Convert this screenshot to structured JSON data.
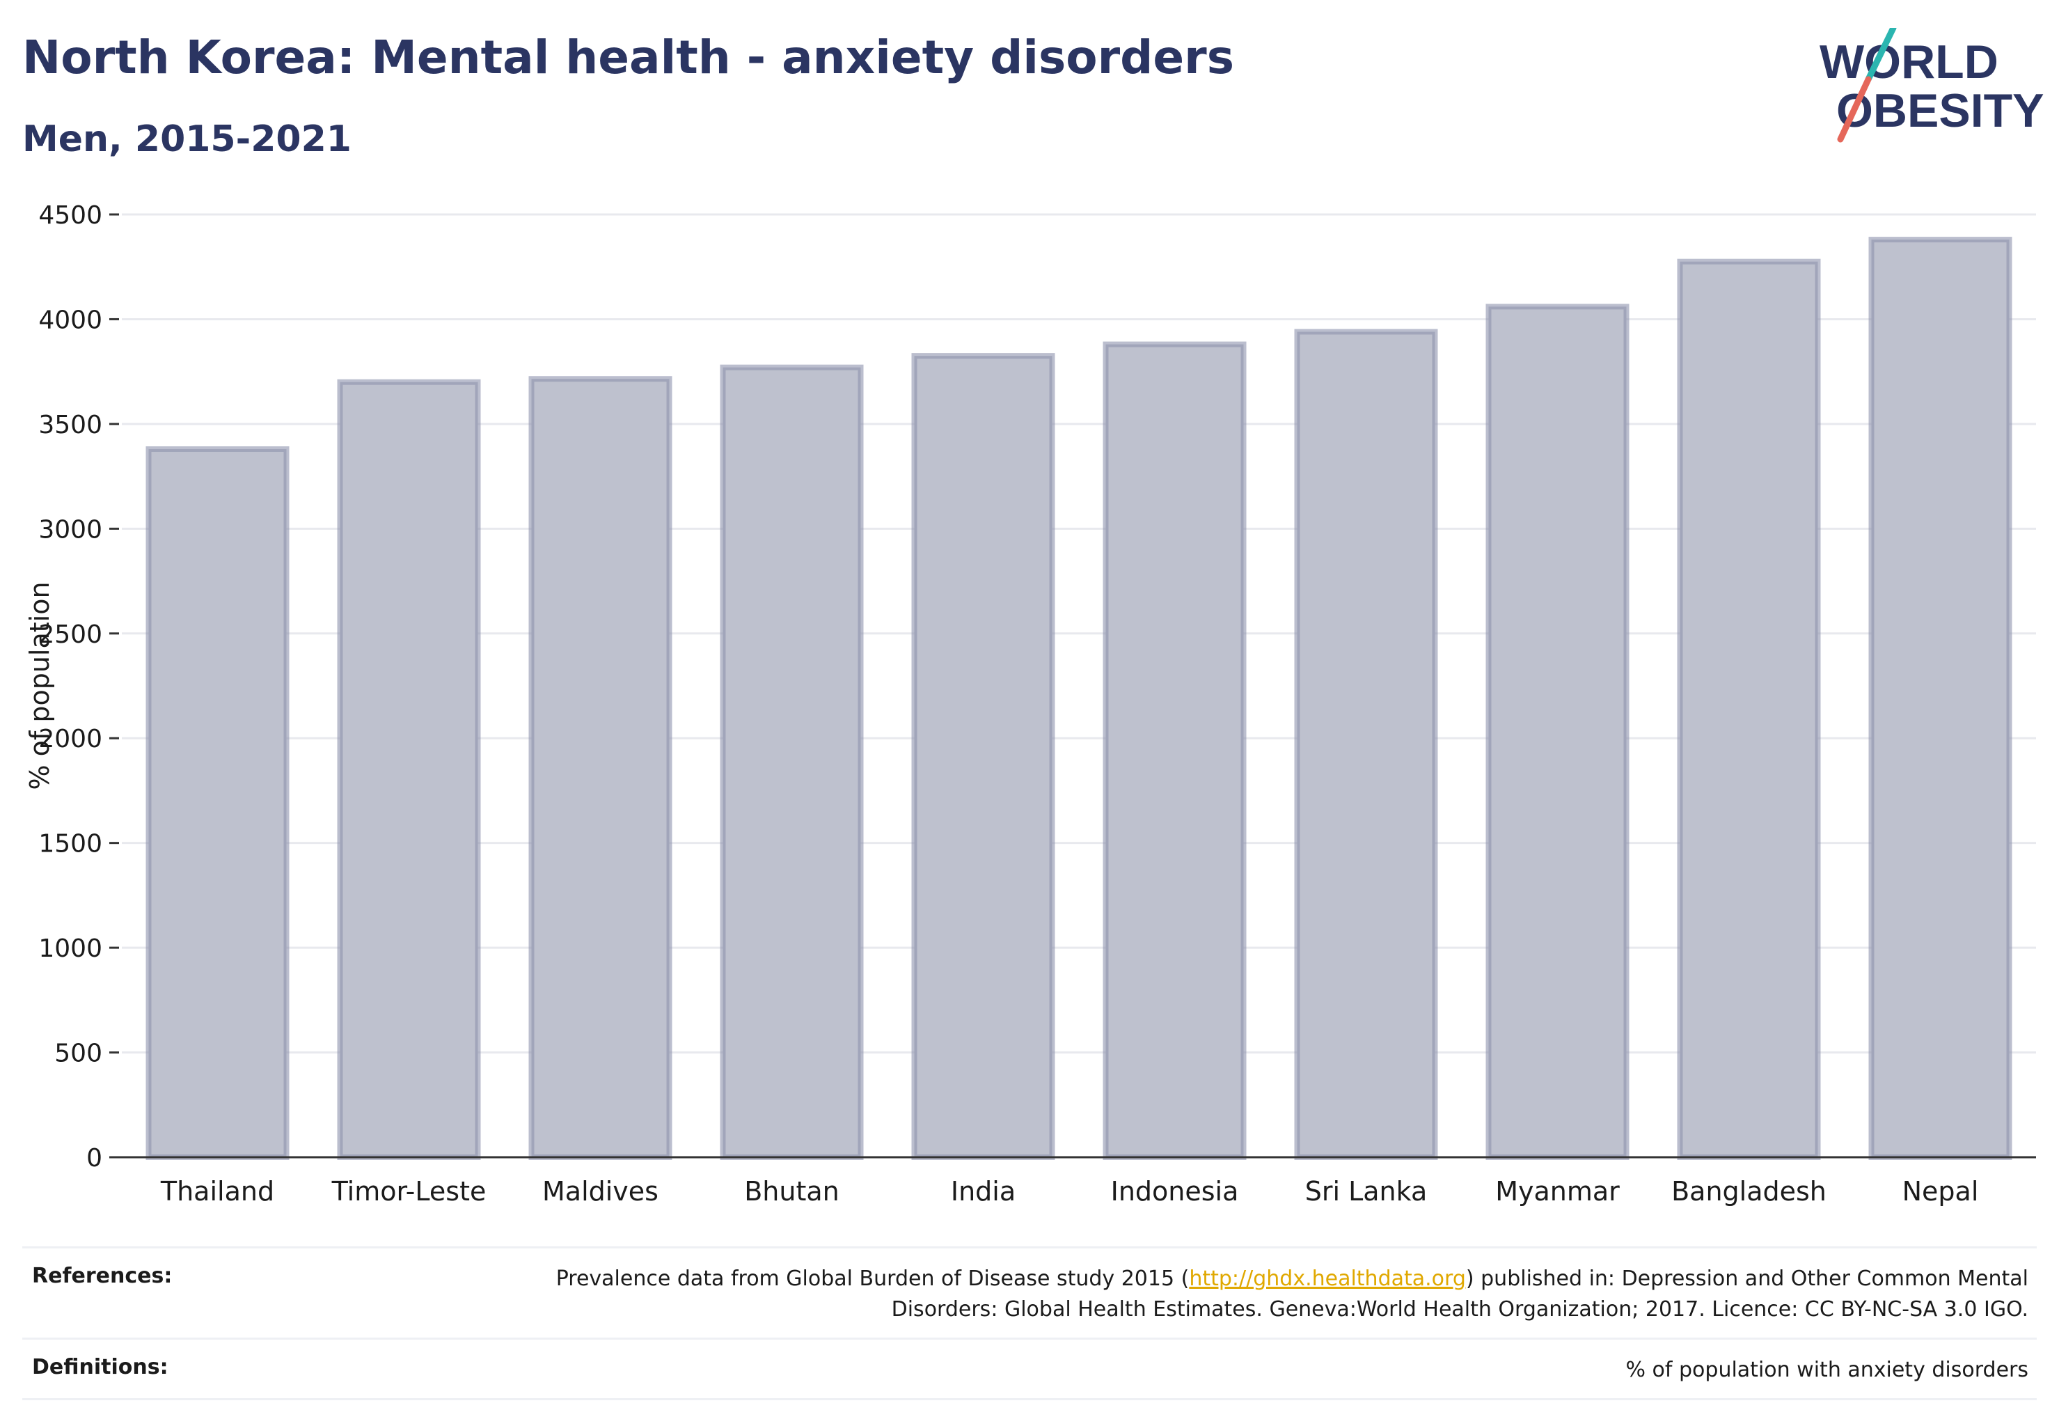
{
  "header": {
    "title": "North Korea: Mental health - anxiety disorders",
    "subtitle": "Men, 2015-2021"
  },
  "logo": {
    "line1": "WORLD",
    "line2": "OBESITY",
    "accent_teal": "#2bb5b0",
    "accent_red": "#e5675a",
    "text_color": "#2b3562"
  },
  "chart_data": {
    "type": "bar",
    "categories": [
      "Thailand",
      "Timor-Leste",
      "Maldives",
      "Bhutan",
      "India",
      "Indonesia",
      "Sri Lanka",
      "Myanmar",
      "Bangladesh",
      "Nepal"
    ],
    "values": [
      3380,
      3700,
      3715,
      3770,
      3825,
      3880,
      3940,
      4060,
      4275,
      4380
    ],
    "ylabel": "% of population",
    "ylim": [
      0,
      4500
    ],
    "yticks": [
      0,
      500,
      1000,
      1500,
      2000,
      2500,
      3000,
      3500,
      4000,
      4500
    ],
    "grid": true,
    "bar_fill": "#bec1ce",
    "bar_stroke": "#8d93ad"
  },
  "references": {
    "label": "References:",
    "text_before": "Prevalence data from Global Burden of Disease study 2015 (",
    "link": "http://ghdx.healthdata.org",
    "text_after": ") published in: Depression and Other Common Mental Disorders: Global Health Estimates. Geneva:World Health Organization; 2017. Licence: CC BY-NC-SA 3.0 IGO."
  },
  "definitions": {
    "label": "Definitions:",
    "text": "% of population with anxiety disorders"
  }
}
